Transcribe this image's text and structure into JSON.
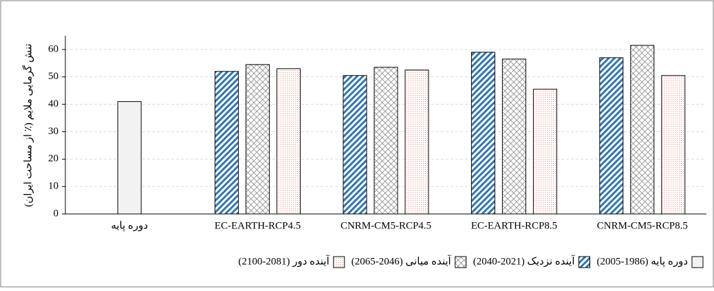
{
  "chart_data": {
    "type": "bar",
    "ylabel": "تنش گرمایی ملایم (٪ از مساحت ایران)",
    "categories": [
      "دوره پایه",
      "EC-EARTH-RCP4.5",
      "CNRM-CM5-RCP4.5",
      "EC-EARTH-RCP8.5",
      "CNRM-CM5-RCP8.5"
    ],
    "series": [
      {
        "name": "دوره پایه (1986-2005)",
        "color": "#f2f2f2",
        "pattern": "solid",
        "values": [
          41,
          null,
          null,
          null,
          null
        ]
      },
      {
        "name": "آینده نزدیک (2021-2040)",
        "color": "#2e75b6",
        "pattern": "diagonal",
        "values": [
          null,
          52,
          50.5,
          59,
          57
        ]
      },
      {
        "name": "آینده میانی (2046-2065)",
        "color": "#808080",
        "pattern": "cross",
        "values": [
          null,
          54.5,
          53.5,
          56.5,
          61.5
        ]
      },
      {
        "name": "آینده دور (2081-2100)",
        "color": "#ff8080",
        "pattern": "dots",
        "values": [
          null,
          53,
          52.5,
          45.5,
          50.5
        ]
      }
    ],
    "ylim": [
      0,
      65
    ],
    "yticks": [
      0,
      10,
      20,
      30,
      40,
      50,
      60
    ],
    "grid": true
  }
}
